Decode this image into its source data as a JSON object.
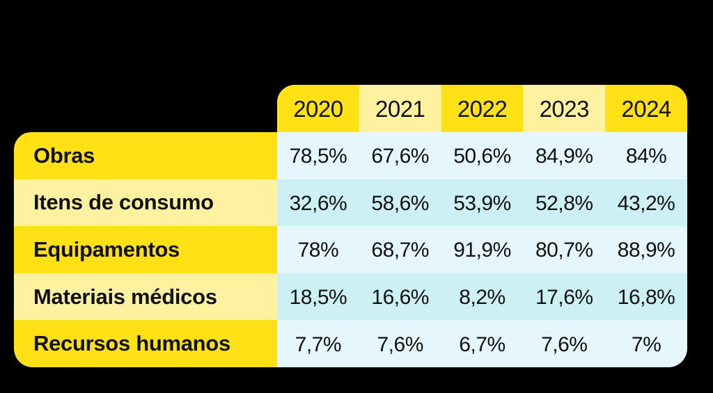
{
  "table": {
    "columns": [
      "2020",
      "2021",
      "2022",
      "2023",
      "2024"
    ],
    "rows": [
      {
        "label": "Obras",
        "values": [
          "78,5%",
          "67,6%",
          "50,6%",
          "84,9%",
          "84%"
        ]
      },
      {
        "label": "Itens de consumo",
        "values": [
          "32,6%",
          "58,6%",
          "53,9%",
          "52,8%",
          "43,2%"
        ]
      },
      {
        "label": "Equipamentos",
        "values": [
          "78%",
          "68,7%",
          "91,9%",
          "80,7%",
          "88,9%"
        ]
      },
      {
        "label": "Materiais médicos",
        "values": [
          "18,5%",
          "16,6%",
          "8,2%",
          "17,6%",
          "16,8%"
        ]
      },
      {
        "label": "Recursos humanos",
        "values": [
          "7,7%",
          "7,6%",
          "6,7%",
          "7,6%",
          "7%"
        ]
      }
    ]
  },
  "chart_data": {
    "type": "table",
    "title": "",
    "columns": [
      "2020",
      "2021",
      "2022",
      "2023",
      "2024"
    ],
    "categories": [
      "Obras",
      "Itens de consumo",
      "Equipamentos",
      "Materiais médicos",
      "Recursos humanos"
    ],
    "series": [
      {
        "name": "Obras",
        "values": [
          78.5,
          67.6,
          50.6,
          84.9,
          84.0
        ]
      },
      {
        "name": "Itens de consumo",
        "values": [
          32.6,
          58.6,
          53.9,
          52.8,
          43.2
        ]
      },
      {
        "name": "Equipamentos",
        "values": [
          78.0,
          68.7,
          91.9,
          80.7,
          88.9
        ]
      },
      {
        "name": "Materiais médicos",
        "values": [
          18.5,
          16.6,
          8.2,
          17.6,
          16.8
        ]
      },
      {
        "name": "Recursos humanos",
        "values": [
          7.7,
          7.6,
          6.7,
          7.6,
          7.0
        ]
      }
    ],
    "unit": "%",
    "decimal_separator": ","
  },
  "colors": {
    "background": "#000000",
    "bright_yellow": "#FFE115",
    "pale_yellow": "#FEF2A1",
    "blue_light": "#E5F7FC",
    "blue_dark": "#CDF0F5",
    "text": "#111111"
  }
}
